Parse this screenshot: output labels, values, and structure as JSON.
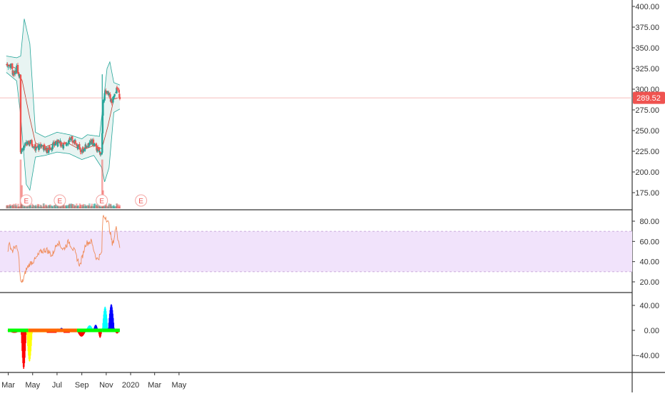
{
  "colors": {
    "up": "#26a69a",
    "down": "#ef5350",
    "band_line": "#26a69a",
    "band_fill": "#e8f4f2",
    "basis": "#c0392b",
    "rsi_line": "#f08c5a",
    "rsi_band": "#f1e3fb",
    "price_badge": "#ef5350",
    "separator": "#333333"
  },
  "icons": [
    "earnings-marker-icon"
  ],
  "price_badge": {
    "label": "289.52",
    "value": 289.52
  },
  "earnings_markers": [
    {
      "label": "E",
      "date": "2019-04-15"
    },
    {
      "label": "E",
      "date": "2019-07-08"
    },
    {
      "label": "E",
      "date": "2019-10-21"
    },
    {
      "label": "E",
      "date": "2020-01-27"
    }
  ],
  "time_axis": {
    "start": "2019-02-28",
    "end": "2020-06-30",
    "labels": [
      {
        "text": "Mar",
        "date": "2019-03-01"
      },
      {
        "text": "May",
        "date": "2019-05-01"
      },
      {
        "text": "Jul",
        "date": "2019-07-01"
      },
      {
        "text": "Sep",
        "date": "2019-09-01"
      },
      {
        "text": "Nov",
        "date": "2019-11-01"
      },
      {
        "text": "2020",
        "date": "2020-01-01"
      },
      {
        "text": "Mar",
        "date": "2020-03-01"
      },
      {
        "text": "May",
        "date": "2020-05-01"
      }
    ]
  },
  "chart_data": [
    {
      "type": "candlestick",
      "ylim": [
        150,
        410
      ],
      "y_ticks": [
        {
          "text": "400.00",
          "value": 400
        },
        {
          "text": "375.00",
          "value": 375
        },
        {
          "text": "350.00",
          "value": 350
        },
        {
          "text": "325.00",
          "value": 325
        },
        {
          "text": "300.00",
          "value": 300
        },
        {
          "text": "275.00",
          "value": 275
        },
        {
          "text": "250.00",
          "value": 250
        },
        {
          "text": "225.00",
          "value": 225
        },
        {
          "text": "200.00",
          "value": 200
        },
        {
          "text": "175.00",
          "value": 175
        }
      ],
      "close_series": [
        {
          "date": "2019-02-25",
          "close": 330
        },
        {
          "date": "2019-03-08",
          "close": 328
        },
        {
          "date": "2019-03-15",
          "close": 315
        },
        {
          "date": "2019-03-22",
          "close": 325
        },
        {
          "date": "2019-03-29",
          "close": 318
        },
        {
          "date": "2019-04-01",
          "close": 225
        },
        {
          "date": "2019-04-12",
          "close": 232
        },
        {
          "date": "2019-04-26",
          "close": 236
        },
        {
          "date": "2019-05-10",
          "close": 228
        },
        {
          "date": "2019-05-24",
          "close": 232
        },
        {
          "date": "2019-06-07",
          "close": 226
        },
        {
          "date": "2019-06-21",
          "close": 232
        },
        {
          "date": "2019-07-05",
          "close": 236
        },
        {
          "date": "2019-07-19",
          "close": 232
        },
        {
          "date": "2019-08-02",
          "close": 240
        },
        {
          "date": "2019-08-16",
          "close": 236
        },
        {
          "date": "2019-08-30",
          "close": 224
        },
        {
          "date": "2019-09-13",
          "close": 232
        },
        {
          "date": "2019-09-27",
          "close": 236
        },
        {
          "date": "2019-10-11",
          "close": 226
        },
        {
          "date": "2019-10-21",
          "close": 222
        },
        {
          "date": "2019-10-24",
          "close": 288
        },
        {
          "date": "2019-10-31",
          "close": 298
        },
        {
          "date": "2019-11-08",
          "close": 292
        },
        {
          "date": "2019-11-15",
          "close": 284
        },
        {
          "date": "2019-11-22",
          "close": 292
        },
        {
          "date": "2019-11-29",
          "close": 302
        },
        {
          "date": "2019-12-05",
          "close": 290
        }
      ],
      "bollinger": {
        "upper": [
          {
            "date": "2019-02-25",
            "value": 340
          },
          {
            "date": "2019-03-22",
            "value": 338
          },
          {
            "date": "2019-04-01",
            "value": 340
          },
          {
            "date": "2019-04-10",
            "value": 385
          },
          {
            "date": "2019-04-24",
            "value": 355
          },
          {
            "date": "2019-05-08",
            "value": 248
          },
          {
            "date": "2019-06-01",
            "value": 242
          },
          {
            "date": "2019-07-01",
            "value": 248
          },
          {
            "date": "2019-08-01",
            "value": 245
          },
          {
            "date": "2019-09-01",
            "value": 240
          },
          {
            "date": "2019-09-15",
            "value": 245
          },
          {
            "date": "2019-10-15",
            "value": 243
          },
          {
            "date": "2019-10-25",
            "value": 285
          },
          {
            "date": "2019-11-03",
            "value": 325
          },
          {
            "date": "2019-11-10",
            "value": 333
          },
          {
            "date": "2019-11-20",
            "value": 308
          },
          {
            "date": "2019-12-05",
            "value": 305
          }
        ],
        "lower": [
          {
            "date": "2019-02-25",
            "value": 320
          },
          {
            "date": "2019-03-22",
            "value": 310
          },
          {
            "date": "2019-04-01",
            "value": 268
          },
          {
            "date": "2019-04-15",
            "value": 185
          },
          {
            "date": "2019-04-24",
            "value": 178
          },
          {
            "date": "2019-05-08",
            "value": 218
          },
          {
            "date": "2019-06-01",
            "value": 220
          },
          {
            "date": "2019-07-01",
            "value": 224
          },
          {
            "date": "2019-08-01",
            "value": 222
          },
          {
            "date": "2019-09-01",
            "value": 215
          },
          {
            "date": "2019-10-01",
            "value": 220
          },
          {
            "date": "2019-10-21",
            "value": 205
          },
          {
            "date": "2019-10-28",
            "value": 188
          },
          {
            "date": "2019-11-08",
            "value": 205
          },
          {
            "date": "2019-11-20",
            "value": 272
          },
          {
            "date": "2019-12-05",
            "value": 276
          }
        ],
        "basis": [
          {
            "date": "2019-02-25",
            "value": 330
          },
          {
            "date": "2019-03-22",
            "value": 325
          },
          {
            "date": "2019-04-05",
            "value": 310
          },
          {
            "date": "2019-04-24",
            "value": 265
          },
          {
            "date": "2019-05-08",
            "value": 235
          },
          {
            "date": "2019-06-01",
            "value": 230
          },
          {
            "date": "2019-07-01",
            "value": 236
          },
          {
            "date": "2019-08-01",
            "value": 234
          },
          {
            "date": "2019-09-01",
            "value": 226
          },
          {
            "date": "2019-10-01",
            "value": 232
          },
          {
            "date": "2019-10-21",
            "value": 228
          },
          {
            "date": "2019-11-05",
            "value": 255
          },
          {
            "date": "2019-11-20",
            "value": 288
          },
          {
            "date": "2019-12-05",
            "value": 290
          }
        ]
      },
      "volume_spikes": [
        {
          "date": "2019-04-01",
          "rel": 0.95
        },
        {
          "date": "2019-04-04",
          "rel": 0.45
        },
        {
          "date": "2019-10-22",
          "rel": 0.95
        },
        {
          "date": "2019-10-24",
          "rel": 0.35
        }
      ]
    },
    {
      "type": "line",
      "series": [
        {
          "values": [
            {
              "date": "2019-02-28",
              "value": 52
            },
            {
              "date": "2019-03-05",
              "value": 57
            },
            {
              "date": "2019-03-12",
              "value": 50
            },
            {
              "date": "2019-03-19",
              "value": 56
            },
            {
              "date": "2019-03-26",
              "value": 50
            },
            {
              "date": "2019-04-02",
              "value": 18
            },
            {
              "date": "2019-04-08",
              "value": 22
            },
            {
              "date": "2019-04-15",
              "value": 32
            },
            {
              "date": "2019-04-24",
              "value": 38
            },
            {
              "date": "2019-05-08",
              "value": 42
            },
            {
              "date": "2019-05-22",
              "value": 50
            },
            {
              "date": "2019-06-05",
              "value": 52
            },
            {
              "date": "2019-06-19",
              "value": 46
            },
            {
              "date": "2019-07-03",
              "value": 60
            },
            {
              "date": "2019-07-17",
              "value": 52
            },
            {
              "date": "2019-07-31",
              "value": 60
            },
            {
              "date": "2019-08-14",
              "value": 50
            },
            {
              "date": "2019-08-28",
              "value": 36
            },
            {
              "date": "2019-09-11",
              "value": 58
            },
            {
              "date": "2019-09-25",
              "value": 60
            },
            {
              "date": "2019-10-09",
              "value": 42
            },
            {
              "date": "2019-10-21",
              "value": 48
            },
            {
              "date": "2019-10-24",
              "value": 85
            },
            {
              "date": "2019-11-01",
              "value": 84
            },
            {
              "date": "2019-11-09",
              "value": 75
            },
            {
              "date": "2019-11-17",
              "value": 56
            },
            {
              "date": "2019-11-26",
              "value": 74
            },
            {
              "date": "2019-12-05",
              "value": 55
            }
          ]
        }
      ],
      "ylim": [
        12,
        95
      ],
      "band": [
        30,
        70
      ],
      "y_ticks": [
        {
          "text": "20.00",
          "value": 20
        },
        {
          "text": "40.00",
          "value": 40
        },
        {
          "text": "60.00",
          "value": 60
        },
        {
          "text": "80.00",
          "value": 80
        }
      ]
    },
    {
      "type": "bar",
      "ylim": [
        -75,
        55
      ],
      "y_ticks": [
        {
          "text": "40.00",
          "value": 40
        },
        {
          "text": "0.00",
          "value": 0
        },
        {
          "text": "−40.00",
          "value": -40
        }
      ],
      "segments": [
        {
          "start": "2019-02-28",
          "end": "2019-04-02",
          "shape": "sin",
          "peak": -4,
          "color": "#ff0000"
        },
        {
          "start": "2019-04-02",
          "end": "2019-04-16",
          "shape": "sin",
          "peak": -62,
          "color": "#ff0000"
        },
        {
          "start": "2019-04-16",
          "end": "2019-05-01",
          "shape": "sin",
          "peak": -50,
          "color": "#ffff00"
        },
        {
          "start": "2019-05-01",
          "end": "2019-06-06",
          "shape": "flat",
          "peak": -3,
          "color": "#ffff00"
        },
        {
          "start": "2019-06-06",
          "end": "2019-06-30",
          "shape": "flat",
          "peak": -4,
          "color": "#ff0000"
        },
        {
          "start": "2019-06-30",
          "end": "2019-07-07",
          "shape": "sin",
          "peak": 3,
          "color": "#00ffff"
        },
        {
          "start": "2019-07-07",
          "end": "2019-07-18",
          "shape": "sin",
          "peak": 4,
          "color": "#0000ff"
        },
        {
          "start": "2019-07-18",
          "end": "2019-08-02",
          "shape": "flat",
          "peak": -4,
          "color": "#ff0000"
        },
        {
          "start": "2019-08-02",
          "end": "2019-08-20",
          "shape": "flat",
          "peak": -3,
          "color": "#ff8000"
        },
        {
          "start": "2019-08-20",
          "end": "2019-09-12",
          "shape": "sin",
          "peak": -10,
          "color": "#ff0000"
        },
        {
          "start": "2019-09-12",
          "end": "2019-09-30",
          "shape": "sin",
          "peak": 8,
          "color": "#00ffff"
        },
        {
          "start": "2019-09-30",
          "end": "2019-10-12",
          "shape": "sin",
          "peak": 9,
          "color": "#0000ff"
        },
        {
          "start": "2019-10-12",
          "end": "2019-10-22",
          "shape": "sin",
          "peak": -12,
          "color": "#ff0000"
        },
        {
          "start": "2019-10-22",
          "end": "2019-11-06",
          "shape": "sin",
          "peak": 38,
          "color": "#00ffff"
        },
        {
          "start": "2019-11-06",
          "end": "2019-11-22",
          "shape": "sin",
          "peak": 42,
          "color": "#0000ff"
        },
        {
          "start": "2019-11-22",
          "end": "2019-12-05",
          "shape": "sin",
          "peak": -5,
          "color": "#ff0000"
        }
      ],
      "zero_dots": [
        {
          "start": "2019-02-28",
          "end": "2019-04-20",
          "color": "#00ff00"
        },
        {
          "start": "2019-04-20",
          "end": "2019-08-20",
          "color": "#ff6600"
        },
        {
          "start": "2019-08-20",
          "end": "2019-10-22",
          "color": "#00ff00"
        },
        {
          "start": "2019-10-22",
          "end": "2019-12-05",
          "color": "#00ff00"
        }
      ]
    }
  ]
}
